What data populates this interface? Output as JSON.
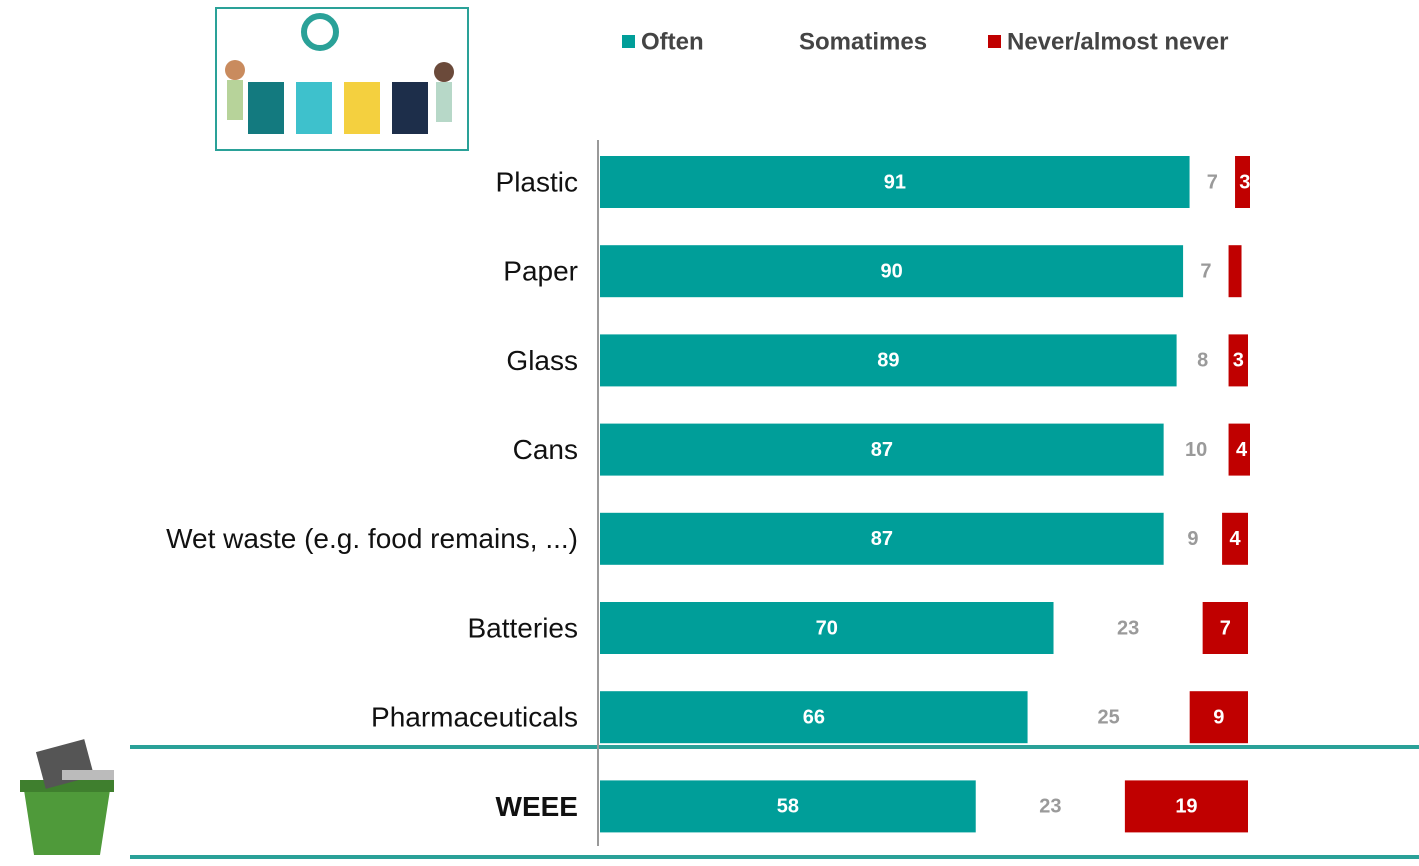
{
  "chart_data": {
    "type": "stacked-bar-horizontal",
    "categories": [
      "Plastic",
      "Paper",
      "Glass",
      "Cans",
      "Wet waste (e.g. food remains, ...)",
      "Batteries",
      "Pharmaceuticals",
      "WEEE"
    ],
    "series": [
      {
        "name": "Often",
        "color": "#009e99",
        "values": [
          91,
          90,
          89,
          87,
          87,
          70,
          66,
          58
        ]
      },
      {
        "name": "Somatimes",
        "color": "#ffffff",
        "values": [
          7,
          7,
          8,
          10,
          9,
          23,
          25,
          23
        ]
      },
      {
        "name": "Never/almost never",
        "color": "#c00000",
        "values": [
          3,
          2,
          3,
          4,
          4,
          7,
          9,
          19
        ],
        "value_labels": [
          "3",
          null,
          "3",
          "4",
          "4",
          "7",
          "9",
          "19"
        ]
      }
    ]
  }
}
